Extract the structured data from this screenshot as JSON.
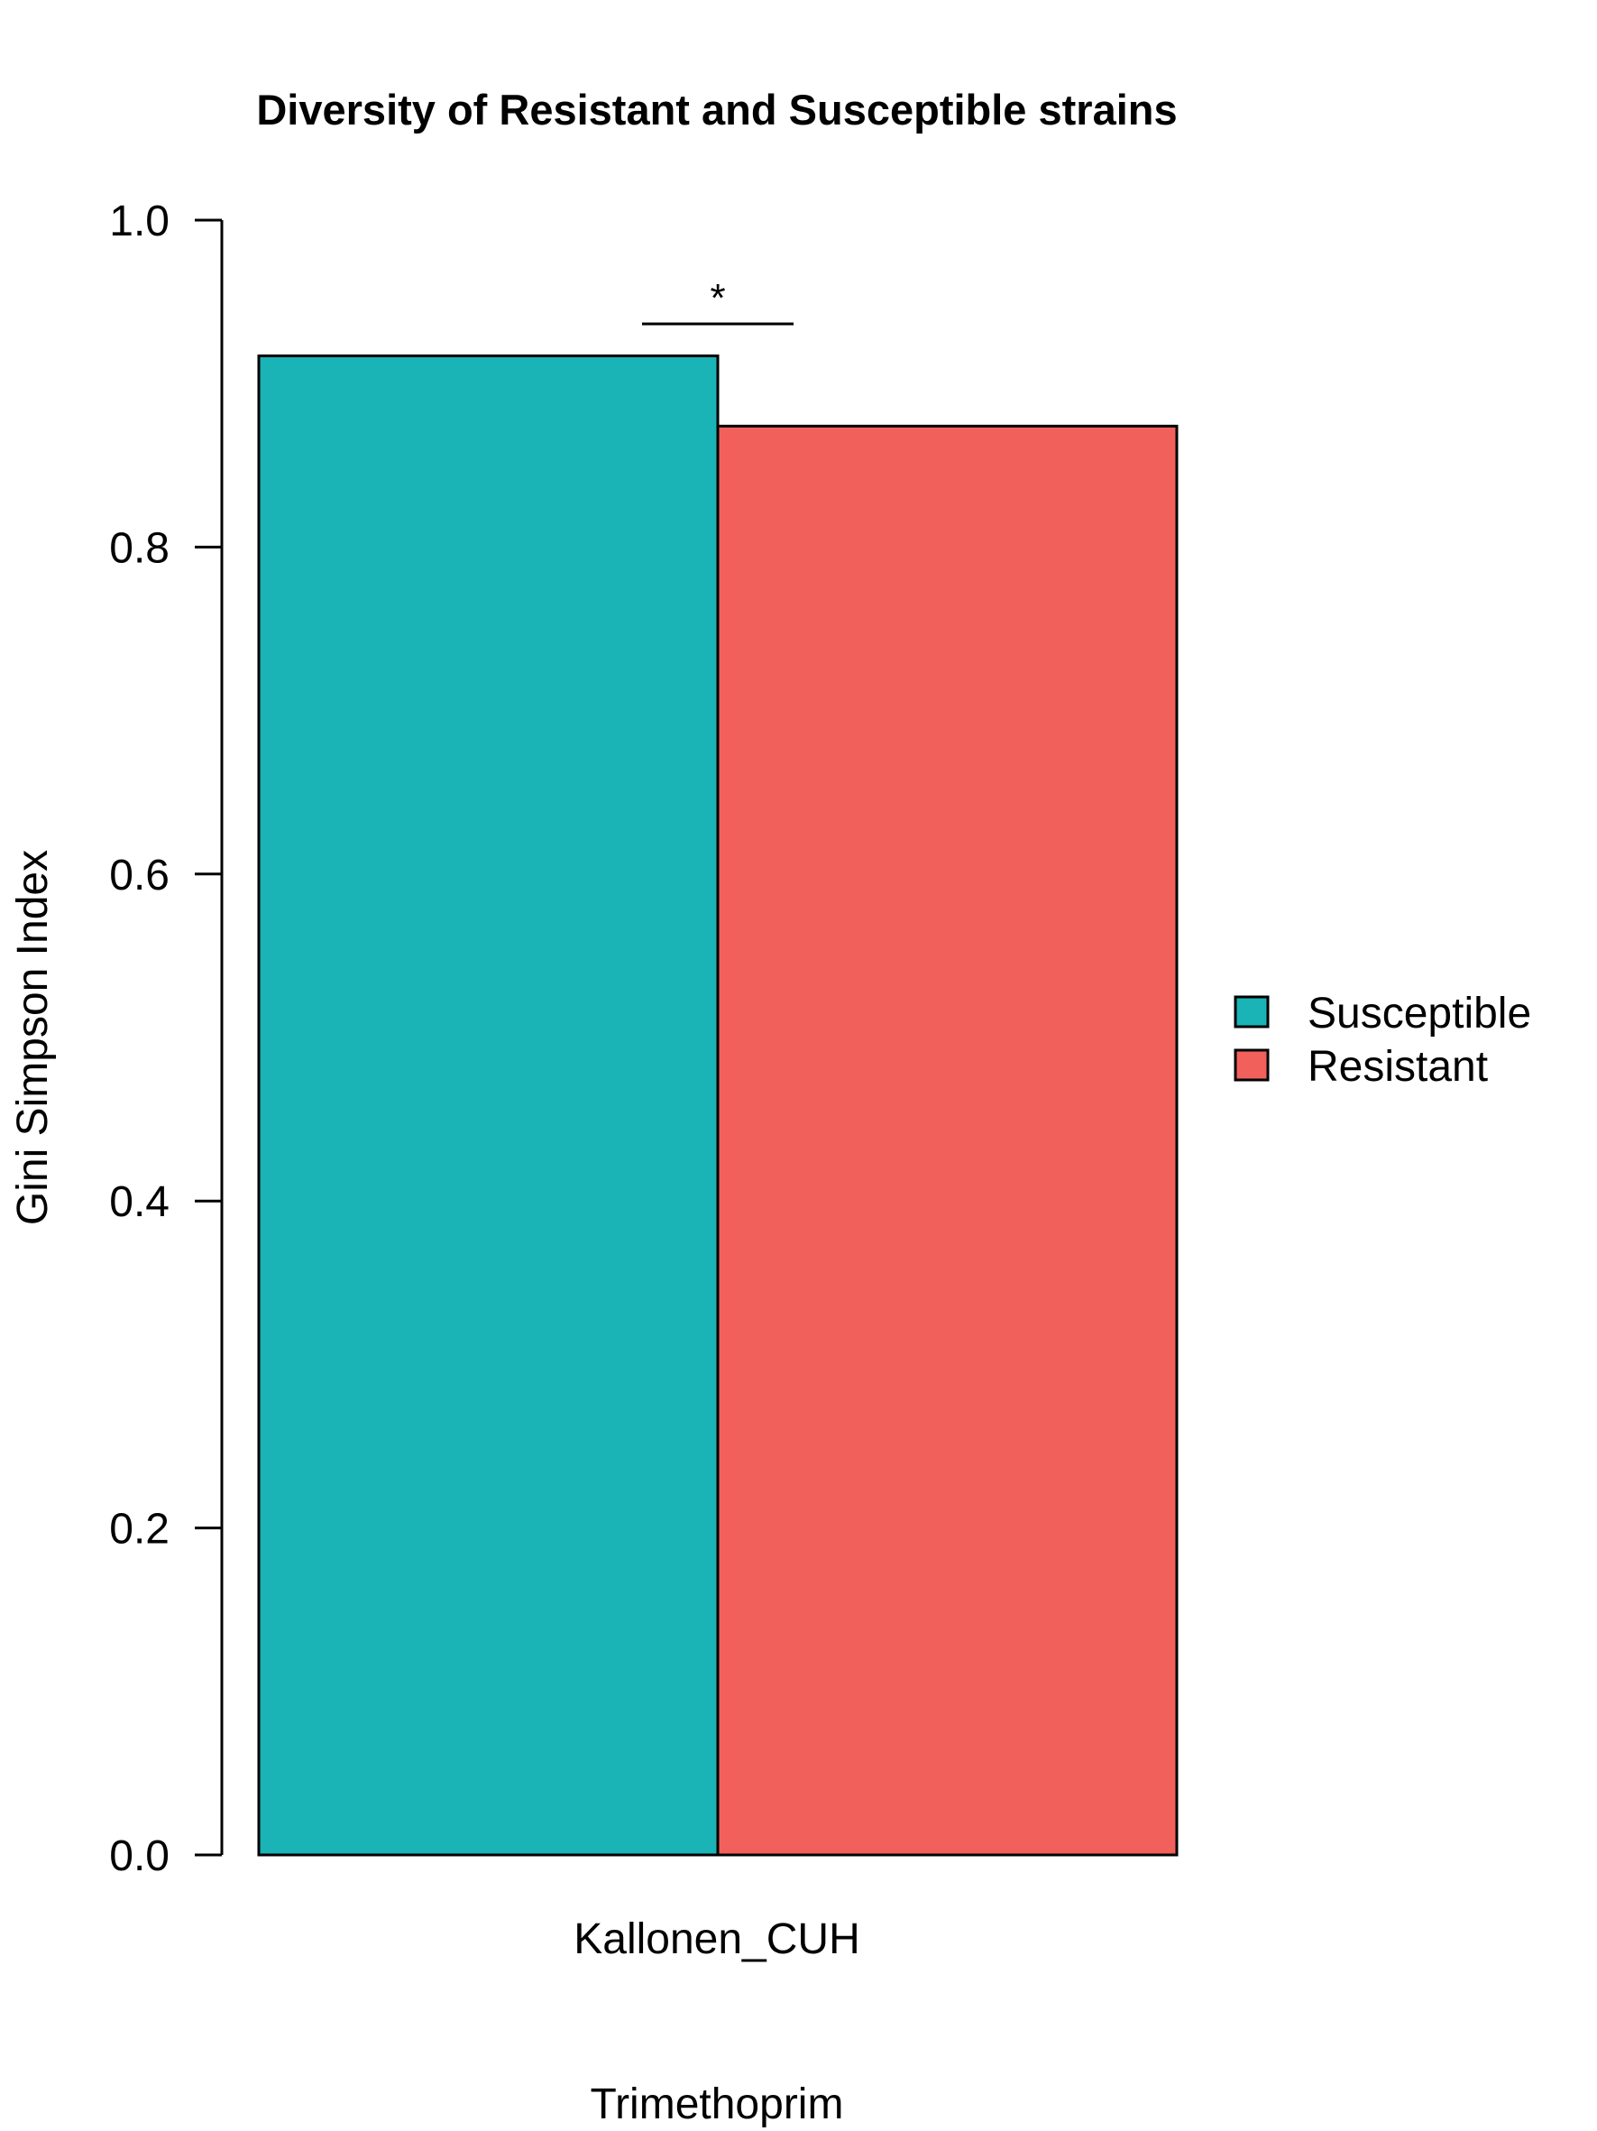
{
  "chart_data": {
    "type": "bar",
    "title": "Diversity of Resistant and Susceptible strains",
    "xlabel": "Trimethoprim",
    "ylabel": "Gini Simpson Index",
    "categories": [
      "Kallonen_CUH"
    ],
    "series": [
      {
        "name": "Susceptible",
        "values": [
          0.917
        ],
        "color": "#1AB3B6"
      },
      {
        "name": "Resistant",
        "values": [
          0.874
        ],
        "color": "#F2605C"
      }
    ],
    "ylim": [
      0,
      1.0
    ],
    "yticks": [
      "0.0",
      "0.2",
      "0.4",
      "0.6",
      "0.8",
      "1.0"
    ],
    "grid": false,
    "legend_position": "right",
    "annotations": [
      {
        "text": "*",
        "between": [
          "Susceptible",
          "Resistant"
        ]
      }
    ]
  }
}
